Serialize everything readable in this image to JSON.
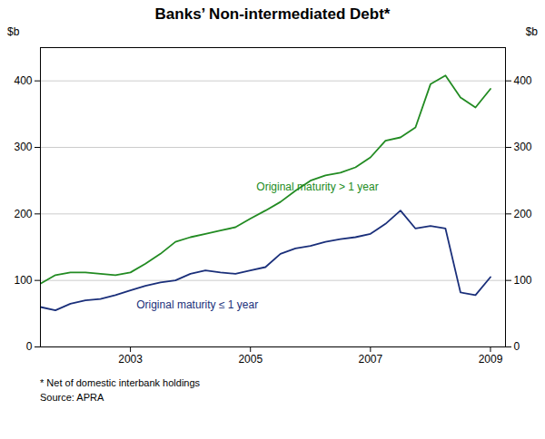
{
  "chart_data": {
    "type": "line",
    "title": "Banks’ Non-intermediated Debt*",
    "ylabel": "$b",
    "y2label": "$b",
    "x": [
      2001.5,
      2001.75,
      2002.0,
      2002.25,
      2002.5,
      2002.75,
      2003.0,
      2003.25,
      2003.5,
      2003.75,
      2004.0,
      2004.25,
      2004.5,
      2004.75,
      2005.0,
      2005.25,
      2005.5,
      2005.75,
      2006.0,
      2006.25,
      2006.5,
      2006.75,
      2007.0,
      2007.25,
      2007.5,
      2007.75,
      2008.0,
      2008.25,
      2008.5,
      2008.75,
      2009.0
    ],
    "series": [
      {
        "name": "Original maturity > 1 year",
        "color": "#228B22",
        "values": [
          95,
          108,
          112,
          112,
          110,
          108,
          112,
          125,
          140,
          158,
          165,
          170,
          175,
          180,
          193,
          205,
          218,
          235,
          250,
          258,
          262,
          270,
          285,
          310,
          315,
          330,
          395,
          408,
          375,
          360,
          388
        ]
      },
      {
        "name": "Original maturity ≤ 1 year",
        "color": "#1a2f7a",
        "values": [
          60,
          55,
          65,
          70,
          72,
          78,
          85,
          92,
          97,
          100,
          110,
          115,
          112,
          110,
          115,
          120,
          140,
          148,
          152,
          158,
          162,
          165,
          170,
          185,
          205,
          178,
          182,
          178,
          82,
          78,
          105
        ]
      }
    ],
    "xlim": [
      2001.5,
      2009.25
    ],
    "xticks": [
      2003,
      2005,
      2007,
      2009
    ],
    "ylim": [
      0,
      450
    ],
    "yticks": [
      0,
      100,
      200,
      300,
      400
    ],
    "y2lim": [
      0,
      450
    ],
    "y2ticks": [
      0,
      100,
      200,
      300,
      400
    ],
    "grid": true,
    "annotations": [
      {
        "text": "Original maturity > 1 year",
        "x": 2005.1,
        "y": 235,
        "color": "#228B22"
      },
      {
        "text": "Original maturity ≤ 1 year",
        "x": 2003.1,
        "y": 58,
        "color": "#1a2f7a"
      }
    ],
    "footnotes": [
      "*  Net of domestic interbank holdings",
      "Source: APRA"
    ]
  }
}
